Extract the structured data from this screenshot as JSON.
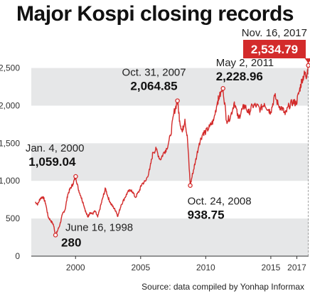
{
  "chart_data": {
    "type": "line",
    "title": "Major Kospi closing records",
    "source": "Source: data compiled by Yonhap Informax",
    "xlim": [
      1996.6,
      2017.9
    ],
    "ylim": [
      0,
      2600
    ],
    "x_ticks": [
      {
        "value": 2000,
        "label": "2000"
      },
      {
        "value": 2005,
        "label": "2005"
      },
      {
        "value": 2010,
        "label": "2010"
      },
      {
        "value": 2015,
        "label": "2015"
      },
      {
        "value": 2017,
        "label": "2017"
      }
    ],
    "y_ticks": [
      {
        "value": 0,
        "label": "0"
      },
      {
        "value": 500,
        "label": "500"
      },
      {
        "value": 1000,
        "label": "1,000"
      },
      {
        "value": 1500,
        "label": "1,500"
      },
      {
        "value": 2000,
        "label": "2,000"
      },
      {
        "value": 2500,
        "label": "2,500"
      }
    ],
    "color": "#d32b2b",
    "series": [
      {
        "values": [
          [
            1996.9,
            720
          ],
          [
            1997.1,
            690
          ],
          [
            1997.3,
            770
          ],
          [
            1997.5,
            790
          ],
          [
            1997.7,
            700
          ],
          [
            1997.9,
            520
          ],
          [
            1998.1,
            470
          ],
          [
            1998.3,
            420
          ],
          [
            1998.46,
            280
          ],
          [
            1998.6,
            330
          ],
          [
            1998.8,
            420
          ],
          [
            1999.0,
            560
          ],
          [
            1999.2,
            620
          ],
          [
            1999.4,
            820
          ],
          [
            1999.6,
            900
          ],
          [
            1999.8,
            960
          ],
          [
            2000.01,
            1059.04
          ],
          [
            2000.2,
            900
          ],
          [
            2000.4,
            800
          ],
          [
            2000.6,
            700
          ],
          [
            2000.8,
            580
          ],
          [
            2000.95,
            520
          ],
          [
            2001.1,
            580
          ],
          [
            2001.3,
            560
          ],
          [
            2001.5,
            600
          ],
          [
            2001.7,
            520
          ],
          [
            2001.9,
            650
          ],
          [
            2002.1,
            780
          ],
          [
            2002.3,
            900
          ],
          [
            2002.5,
            780
          ],
          [
            2002.7,
            700
          ],
          [
            2002.9,
            650
          ],
          [
            2003.1,
            600
          ],
          [
            2003.25,
            530
          ],
          [
            2003.5,
            680
          ],
          [
            2003.8,
            780
          ],
          [
            2004.0,
            850
          ],
          [
            2004.3,
            880
          ],
          [
            2004.6,
            780
          ],
          [
            2004.9,
            870
          ],
          [
            2005.1,
            960
          ],
          [
            2005.4,
            1000
          ],
          [
            2005.7,
            1150
          ],
          [
            2005.95,
            1380
          ],
          [
            2006.2,
            1420
          ],
          [
            2006.5,
            1280
          ],
          [
            2006.8,
            1380
          ],
          [
            2007.0,
            1430
          ],
          [
            2007.3,
            1600
          ],
          [
            2007.55,
            1900
          ],
          [
            2007.83,
            2064.85
          ],
          [
            2008.0,
            1800
          ],
          [
            2008.2,
            1650
          ],
          [
            2008.4,
            1820
          ],
          [
            2008.6,
            1550
          ],
          [
            2008.81,
            938.75
          ],
          [
            2009.0,
            1100
          ],
          [
            2009.2,
            1250
          ],
          [
            2009.5,
            1500
          ],
          [
            2009.8,
            1640
          ],
          [
            2010.0,
            1650
          ],
          [
            2010.3,
            1720
          ],
          [
            2010.6,
            1800
          ],
          [
            2010.9,
            2050
          ],
          [
            2011.0,
            2100
          ],
          [
            2011.33,
            2228.96
          ],
          [
            2011.6,
            1800
          ],
          [
            2011.9,
            1850
          ],
          [
            2012.2,
            2050
          ],
          [
            2012.5,
            1830
          ],
          [
            2012.8,
            1950
          ],
          [
            2013.0,
            2000
          ],
          [
            2013.3,
            1900
          ],
          [
            2013.6,
            2000
          ],
          [
            2013.9,
            2000
          ],
          [
            2014.2,
            1950
          ],
          [
            2014.5,
            2030
          ],
          [
            2014.8,
            1950
          ],
          [
            2015.0,
            1920
          ],
          [
            2015.3,
            2130
          ],
          [
            2015.6,
            2000
          ],
          [
            2015.9,
            1960
          ],
          [
            2016.1,
            1880
          ],
          [
            2016.4,
            2000
          ],
          [
            2016.7,
            2050
          ],
          [
            2016.95,
            2030
          ],
          [
            2017.2,
            2200
          ],
          [
            2017.4,
            2350
          ],
          [
            2017.6,
            2420
          ],
          [
            2017.75,
            2400
          ],
          [
            2017.88,
            2534.79
          ]
        ]
      }
    ],
    "annotations": [
      {
        "date": "June 16, 1998",
        "value": "280",
        "x": 1998.46,
        "y": 280,
        "pos": "right"
      },
      {
        "date": "Jan. 4, 2000",
        "value": "1,059.04",
        "x": 2000.01,
        "y": 1059.04,
        "pos": "above-left"
      },
      {
        "date": "Oct. 31, 2007",
        "value": "2,064.85",
        "x": 2007.83,
        "y": 2064.85,
        "pos": "above-left"
      },
      {
        "date": "Oct. 24, 2008",
        "value": "938.75",
        "x": 2008.81,
        "y": 938.75,
        "pos": "below-right"
      },
      {
        "date": "May 2, 2011",
        "value": "2,228.96",
        "x": 2011.33,
        "y": 2228.96,
        "pos": "above"
      }
    ],
    "highlight": {
      "date": "Nov. 16, 2017",
      "value": "2,534.79",
      "x": 2017.88,
      "y": 2534.79
    }
  }
}
